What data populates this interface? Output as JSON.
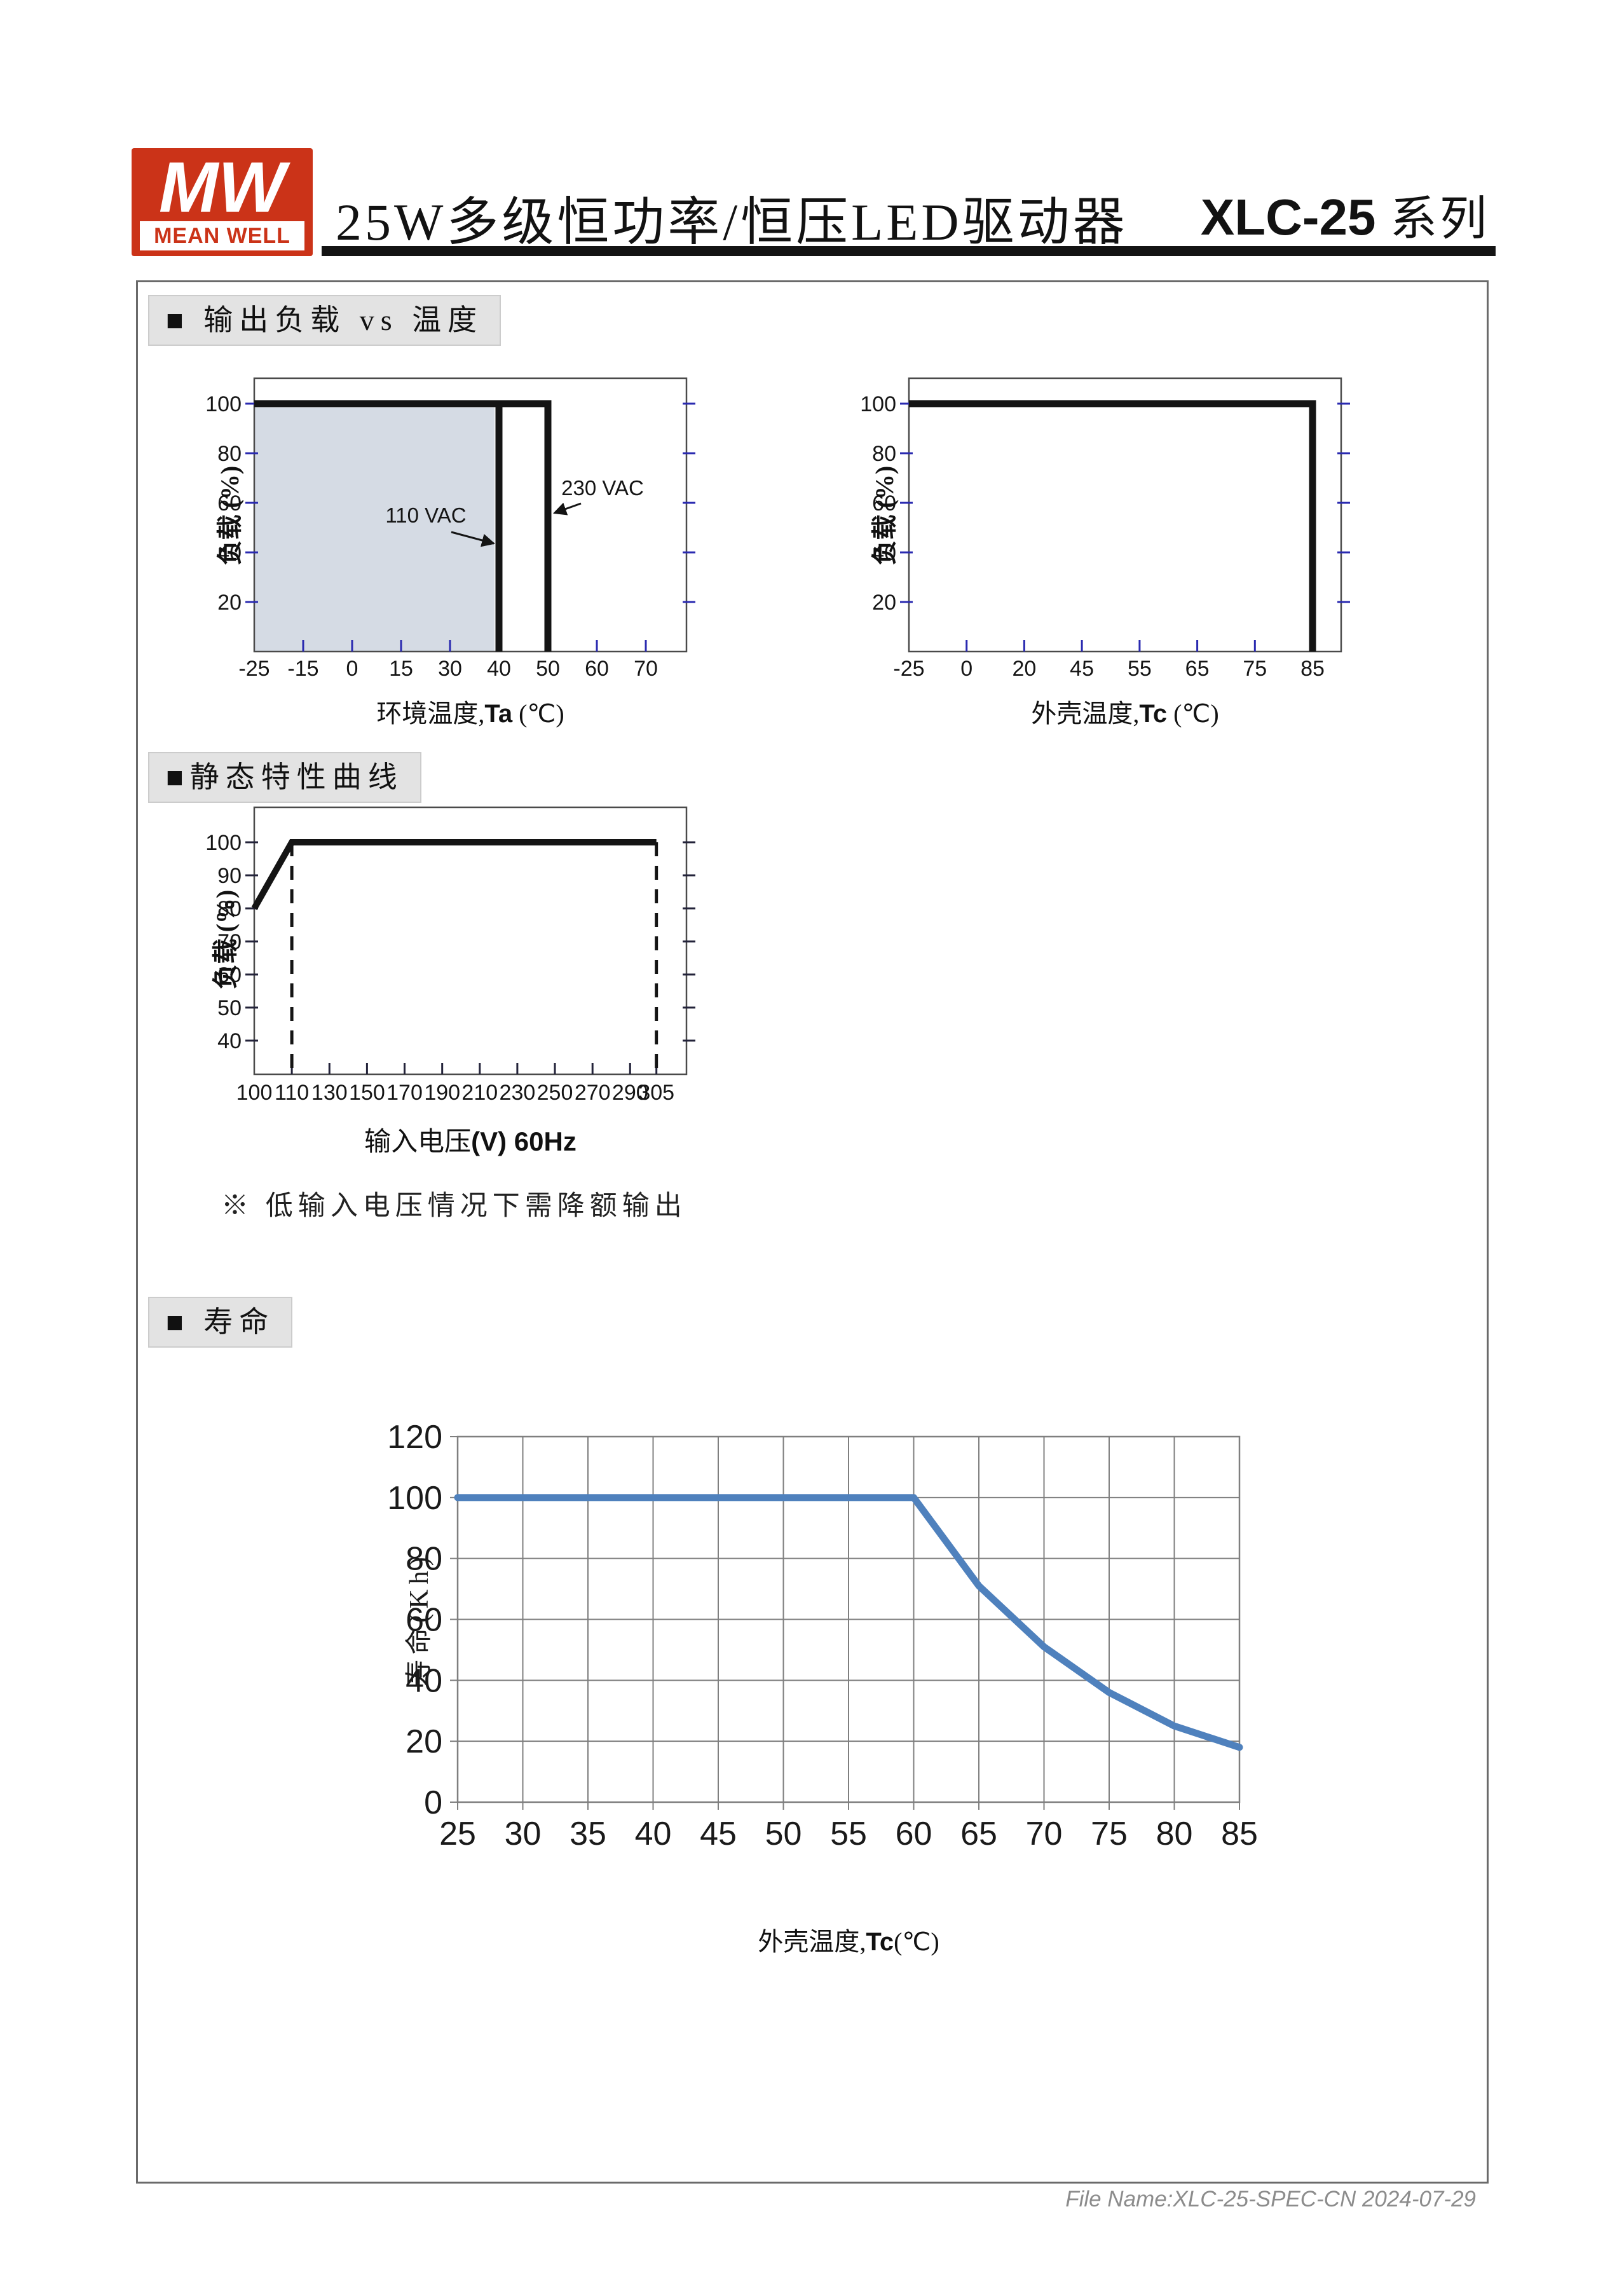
{
  "page": {
    "brand": {
      "mark": "MW",
      "name": "MEAN WELL"
    },
    "title": "25W多级恒功率/恒压LED驱动器",
    "series_code": "XLC-25",
    "series_suffix": " 系列",
    "footer": "File Name:XLC-25-SPEC-CN  2024-07-29"
  },
  "sections": {
    "s1": "■ 输出负载 vs 温度",
    "s2": "■静态特性曲线",
    "s3": "■ 寿命",
    "note": "※ 低输入电压情况下需降额输出"
  },
  "colors": {
    "accent_red": "#cb3318",
    "shade_blue_gray": "#d5dbe4",
    "tick_blue": "#2a2ab0",
    "curve_blue": "#4f81bd",
    "grid_gray": "#7f7f7f",
    "line_black": "#141414"
  },
  "chart_data": [
    {
      "id": "load_vs_ambient_temperature",
      "type": "line",
      "x_scale": "categorical",
      "x_ticks": [
        -25,
        -15,
        0,
        15,
        30,
        40,
        50,
        60,
        70
      ],
      "y_ticks": [
        20,
        40,
        60,
        80,
        100
      ],
      "ylim": [
        0,
        110
      ],
      "grid": false,
      "xlabel": {
        "pre": "环境温度,",
        "bold": "Ta",
        "post": " (℃)"
      },
      "ylabel": "负载 (%)",
      "series": [
        {
          "name": "110 VAC",
          "points": [
            [
              -25,
              100
            ],
            [
              40,
              100
            ],
            [
              40,
              0
            ]
          ]
        },
        {
          "name": "230 VAC",
          "points": [
            [
              -25,
              100
            ],
            [
              50,
              100
            ],
            [
              50,
              0
            ]
          ]
        }
      ],
      "shaded_region": {
        "x": [
          -25,
          40
        ],
        "y": [
          0,
          100
        ],
        "color": "#d5dbe4"
      },
      "annotations": [
        {
          "text": "110 VAC"
        },
        {
          "text": "230 VAC"
        }
      ]
    },
    {
      "id": "load_vs_case_temperature",
      "type": "line",
      "x_scale": "categorical",
      "x_ticks": [
        -25,
        0,
        20,
        45,
        55,
        65,
        75,
        85
      ],
      "y_ticks": [
        20,
        40,
        60,
        80,
        100
      ],
      "ylim": [
        0,
        110
      ],
      "grid": false,
      "xlabel": {
        "pre": "外壳温度,",
        "bold": "Tc",
        "post": " (℃)"
      },
      "ylabel": "负载 (%)",
      "series": [
        {
          "name": "load",
          "points": [
            [
              -25,
              100
            ],
            [
              85,
              100
            ],
            [
              85,
              0
            ]
          ]
        }
      ],
      "annotations": []
    },
    {
      "id": "static_characteristic_curve",
      "type": "line",
      "x_scale": "categorical",
      "x_ticks": [
        100,
        110,
        130,
        150,
        170,
        190,
        210,
        230,
        250,
        270,
        290,
        305
      ],
      "y_ticks": [
        40,
        50,
        60,
        70,
        80,
        90,
        100
      ],
      "ylim": [
        30,
        104
      ],
      "grid": false,
      "xlabel": {
        "pre": "输入电压",
        "bold": "(V) 60Hz",
        "post": ""
      },
      "ylabel": "负载 (%)",
      "series": [
        {
          "name": "load",
          "points": [
            [
              100,
              80
            ],
            [
              110,
              100
            ],
            [
              305,
              100
            ]
          ]
        }
      ],
      "dashed_x": [
        110,
        305
      ],
      "annotations": []
    },
    {
      "id": "lifetime_vs_case_temperature",
      "type": "line",
      "x": [
        25,
        30,
        35,
        40,
        45,
        50,
        55,
        60,
        65,
        70,
        75,
        80,
        85
      ],
      "values": [
        100,
        100,
        100,
        100,
        100,
        100,
        100,
        100,
        71,
        51,
        36,
        25,
        18
      ],
      "x_ticks": [
        25,
        30,
        35,
        40,
        45,
        50,
        55,
        60,
        65,
        70,
        75,
        80,
        85
      ],
      "y_ticks": [
        0,
        20,
        40,
        60,
        80,
        100,
        120
      ],
      "xlim": [
        25,
        85
      ],
      "ylim": [
        0,
        120
      ],
      "grid": true,
      "legend": "none",
      "xlabel": {
        "pre": "外壳温度,",
        "bold": "Tc",
        "post": "(℃)"
      },
      "ylabel": "寿命(Kh)",
      "line_color": "#4f81bd"
    }
  ]
}
